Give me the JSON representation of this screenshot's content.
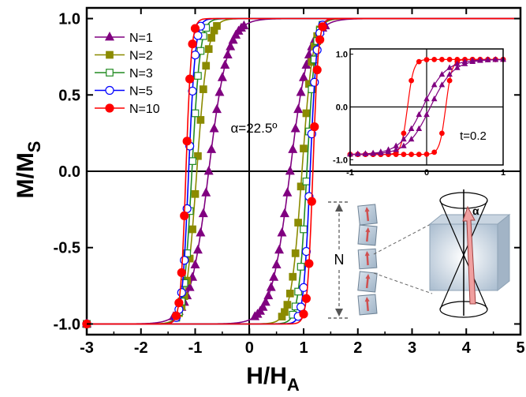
{
  "chart_data": [
    {
      "type": "line",
      "xlabel": "H/H",
      "xlabel_sub": "A",
      "ylabel": "M/M",
      "ylabel_sub": "S",
      "xlim": [
        -3,
        5
      ],
      "ylim": [
        -1.07,
        1.07
      ],
      "xticks": [
        "-3",
        "-2",
        "-1",
        "0",
        "1",
        "2",
        "3",
        "4",
        "5"
      ],
      "yticks": [
        "-1.0",
        "-0.5",
        "0.0",
        "0.5",
        "1.0"
      ],
      "grid": false,
      "legend_position": "top-left",
      "annotation": "α=22.5º",
      "series": [
        {
          "name": "N=1",
          "marker": "triangle",
          "filled": true,
          "color": "#800080",
          "coercive_field": 0.75,
          "switch_width": 0.35
        },
        {
          "name": "N=2",
          "marker": "square",
          "filled": true,
          "color": "#8B8B00",
          "coercive_field": 0.97,
          "switch_width": 0.2
        },
        {
          "name": "N=3",
          "marker": "square",
          "filled": false,
          "color": "#228B22",
          "coercive_field": 1.06,
          "switch_width": 0.15
        },
        {
          "name": "N=5",
          "marker": "circle",
          "filled": false,
          "color": "#0000FF",
          "coercive_field": 1.12,
          "switch_width": 0.12
        },
        {
          "name": "N=10",
          "marker": "circle",
          "filled": true,
          "color": "#FF0000",
          "coercive_field": 1.17,
          "switch_width": 0.1
        }
      ]
    },
    {
      "type": "line",
      "title": "t=0.2",
      "xlim": [
        -1,
        1
      ],
      "ylim": [
        -1.1,
        1.1
      ],
      "xticks": [
        "-1",
        "0",
        "1"
      ],
      "yticks": [
        "-1.0",
        "0.0",
        "1.0"
      ],
      "series": [
        {
          "marker": "circle",
          "filled": true,
          "color": "#FF0000",
          "coercive_field": 0.25,
          "switch_width": 0.08
        },
        {
          "marker": "triangle",
          "filled": true,
          "color": "#800080",
          "coercive_field": 0.05,
          "switch_width": 0.3
        }
      ]
    }
  ],
  "schematic": {
    "stack_label": "N",
    "angle_label": "α"
  }
}
